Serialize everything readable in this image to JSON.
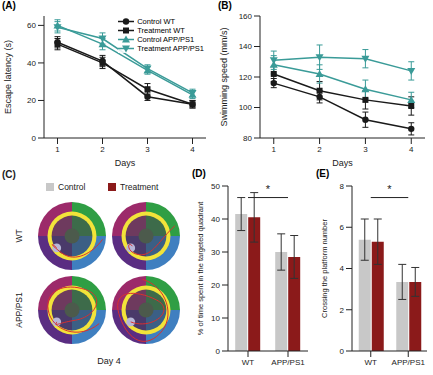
{
  "chart_data": [
    {
      "type": "line",
      "title": "(A)",
      "x_label": "Days",
      "y_label": "Escape latency (s)",
      "x": [
        1,
        2,
        3,
        4
      ],
      "xlim": [
        0.7,
        4.3
      ],
      "xticks": [
        1,
        2,
        3,
        4
      ],
      "ylim": [
        0,
        65
      ],
      "yticks": [
        0,
        20,
        40,
        60
      ],
      "legend": "upper right",
      "series": [
        {
          "name": "Control WT",
          "color": "#1a1a1a",
          "marker": "circle",
          "values": [
            51,
            41,
            22,
            18
          ],
          "errors": [
            3,
            3,
            2,
            2
          ]
        },
        {
          "name": "Treatment WT",
          "color": "#1a1a1a",
          "marker": "square",
          "values": [
            50,
            40,
            26,
            18
          ],
          "errors": [
            3,
            3,
            3,
            2
          ]
        },
        {
          "name": "Control APP/PS1",
          "color": "#3a9b98",
          "marker": "triangle",
          "values": [
            60,
            50,
            36,
            23
          ],
          "errors": [
            3,
            3,
            2,
            2
          ]
        },
        {
          "name": "Treatment APP/PS1",
          "color": "#3a9b98",
          "marker": "triangle-down",
          "values": [
            59,
            53,
            37,
            24
          ],
          "errors": [
            3,
            3,
            2,
            2
          ]
        }
      ]
    },
    {
      "type": "line",
      "title": "(B)",
      "x_label": "Days",
      "y_label": "Swimming speed (mm/s)",
      "x": [
        1,
        2,
        3,
        4
      ],
      "xlim": [
        0.7,
        4.3
      ],
      "xticks": [
        1,
        2,
        3,
        4
      ],
      "ylim": [
        80,
        160
      ],
      "yticks": [
        80,
        100,
        120,
        140,
        160
      ],
      "series": [
        {
          "name": "Control WT",
          "color": "#1a1a1a",
          "marker": "circle",
          "values": [
            116,
            107,
            92,
            86
          ],
          "errors": [
            3,
            4,
            5,
            4
          ]
        },
        {
          "name": "Treatment WT",
          "color": "#1a1a1a",
          "marker": "square",
          "values": [
            122,
            111,
            105,
            101
          ],
          "errors": [
            5,
            6,
            6,
            6
          ]
        },
        {
          "name": "Control APP/PS1",
          "color": "#3a9b98",
          "marker": "triangle",
          "values": [
            128,
            122,
            112,
            105
          ],
          "errors": [
            6,
            6,
            6,
            5
          ]
        },
        {
          "name": "Treatment APP/PS1",
          "color": "#3a9b98",
          "marker": "triangle-down",
          "values": [
            131,
            133,
            132,
            124
          ],
          "errors": [
            6,
            8,
            6,
            6
          ]
        }
      ]
    },
    {
      "type": "bar",
      "title": "(D)",
      "y_label": "% of time spent in the targeted quadrant",
      "categories": [
        "WT",
        "APP/PS1"
      ],
      "ylim": [
        0,
        50
      ],
      "yticks": [
        0,
        10,
        20,
        30,
        40,
        50
      ],
      "series": [
        {
          "name": "Control",
          "color": "#c8c8c8",
          "values": [
            41.5,
            30
          ],
          "errors": [
            5,
            5.5
          ]
        },
        {
          "name": "Treatment",
          "color": "#8b1a1a",
          "values": [
            40.5,
            28.5
          ],
          "errors": [
            7.5,
            6.5
          ]
        }
      ],
      "annotations": [
        {
          "text": "*",
          "from": "WT",
          "to": "APP/PS1"
        }
      ]
    },
    {
      "type": "bar",
      "title": "(E)",
      "y_label": "Crossing the platform number",
      "categories": [
        "WT",
        "APP/PS1"
      ],
      "ylim": [
        0,
        8
      ],
      "yticks": [
        0,
        2,
        4,
        6,
        8
      ],
      "series": [
        {
          "name": "Control",
          "color": "#c8c8c8",
          "values": [
            5.4,
            3.35
          ],
          "errors": [
            1,
            0.85
          ]
        },
        {
          "name": "Treatment",
          "color": "#8b1a1a",
          "values": [
            5.3,
            3.35
          ],
          "errors": [
            1.1,
            0.7
          ]
        }
      ],
      "annotations": [
        {
          "text": "*",
          "from": "WT",
          "to": "APP/PS1"
        }
      ]
    }
  ],
  "image_panel": {
    "title": "(C)",
    "rows": [
      "WT",
      "APP/PS1"
    ],
    "caption": "Day 4",
    "legend": [
      {
        "label": "Control",
        "color": "#c8c8c8"
      },
      {
        "label": "Treatment",
        "color": "#8b1a1a"
      }
    ]
  }
}
